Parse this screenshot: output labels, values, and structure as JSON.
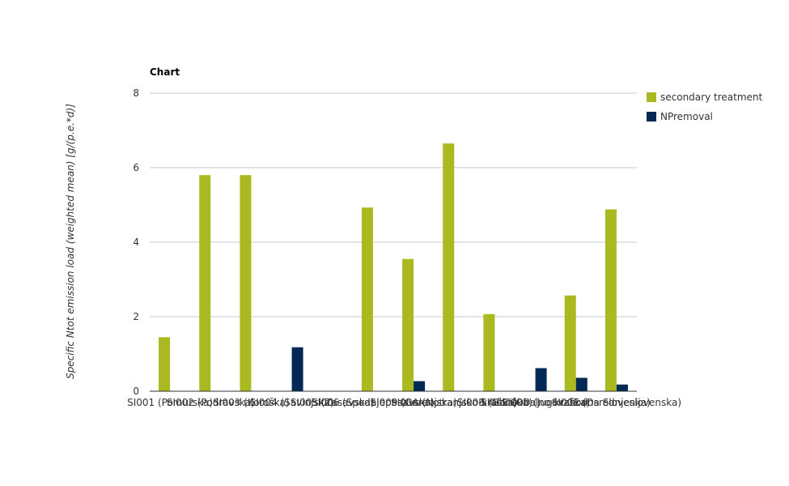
{
  "chart_data": {
    "type": "bar",
    "title": "Chart",
    "ylabel": "Specific Ntot emission load (weighted mean) [g/(p.e.*d)]",
    "xlabel": "",
    "ylim": [
      0,
      8
    ],
    "yticks": [
      0,
      2,
      4,
      6,
      8
    ],
    "grid": true,
    "legend_position": "right",
    "categories": [
      "SI001 (Pomurska)",
      "SI002 (Podravska)",
      "SI003 (Koroška)",
      "SI004 (Savinjska)",
      "SI005 (Zasavska)",
      "SI006 (Spodnjeposavska)",
      "SI009 (Gorenjska)",
      "SI00A (Notranjsko-kraška)",
      "SI00B (Goriška)",
      "SI00C (Obalno-kraška)",
      "SI00D (Jugovzhodna Slovenija)",
      "SI00E (Osrednjeslovenska)"
    ],
    "series": [
      {
        "name": "secondary treatment",
        "color": "#abb920",
        "values": [
          1.45,
          5.8,
          5.8,
          null,
          null,
          4.93,
          3.55,
          6.65,
          2.07,
          null,
          2.57,
          4.88
        ]
      },
      {
        "name": "NPremoval",
        "color": "#002a54",
        "values": [
          null,
          null,
          null,
          1.18,
          null,
          null,
          0.27,
          null,
          null,
          0.62,
          0.36,
          0.18
        ]
      }
    ]
  }
}
